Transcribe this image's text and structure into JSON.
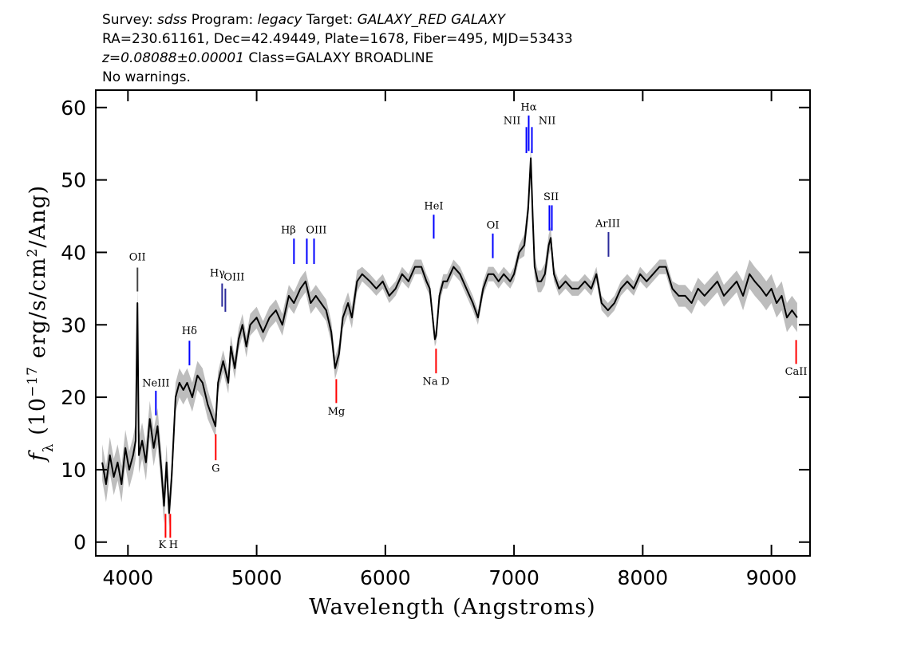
{
  "chart_data": {
    "type": "line",
    "title_lines": [
      [
        {
          "text": "Survey: ",
          "italic": false
        },
        {
          "text": "sdss",
          "italic": true
        },
        {
          "text": " Program: ",
          "italic": false
        },
        {
          "text": "legacy",
          "italic": true
        },
        {
          "text": " Target: ",
          "italic": false
        },
        {
          "text": "GALAXY_RED GALAXY",
          "italic": true
        }
      ],
      [
        {
          "text": "RA=230.61161, Dec=42.49449, Plate=1678, Fiber=495, MJD=53433",
          "italic": false
        }
      ],
      [
        {
          "text": "z=0.08088±0.00001",
          "italic": true
        },
        {
          "text": " Class=GALAXY BROADLINE",
          "italic": false
        }
      ],
      [
        {
          "text": "No warnings.",
          "italic": false
        }
      ]
    ],
    "xlabel": "Wavelength (Angstroms)",
    "ylabel": [
      {
        "text": "f",
        "shift": "italic"
      },
      {
        "text": "λ",
        "shift": "sub"
      },
      {
        "text": " (10",
        "shift": "none"
      },
      {
        "text": "−17",
        "shift": "sup"
      },
      {
        "text": " erg/s/cm",
        "shift": "none"
      },
      {
        "text": "2",
        "shift": "sup"
      },
      {
        "text": "/Ang)",
        "shift": "none"
      }
    ],
    "xlim": [
      3750,
      9300
    ],
    "ylim": [
      -1.9,
      62.4
    ],
    "xticks": [
      4000,
      5000,
      6000,
      7000,
      8000,
      9000
    ],
    "yticks": [
      0,
      10,
      20,
      30,
      40,
      50,
      60
    ],
    "x": [
      3800,
      3830,
      3860,
      3890,
      3920,
      3950,
      3980,
      4010,
      4040,
      4060,
      4074,
      4085,
      4110,
      4140,
      4170,
      4200,
      4230,
      4260,
      4280,
      4300,
      4320,
      4340,
      4370,
      4400,
      4430,
      4460,
      4500,
      4540,
      4580,
      4620,
      4680,
      4700,
      4740,
      4780,
      4800,
      4830,
      4860,
      4890,
      4920,
      4950,
      5000,
      5050,
      5100,
      5150,
      5200,
      5250,
      5290,
      5340,
      5380,
      5420,
      5460,
      5500,
      5540,
      5580,
      5610,
      5640,
      5670,
      5710,
      5740,
      5780,
      5820,
      5880,
      5930,
      5980,
      6030,
      6080,
      6130,
      6180,
      6230,
      6280,
      6320,
      6345,
      6385,
      6395,
      6420,
      6450,
      6480,
      6530,
      6580,
      6630,
      6680,
      6720,
      6760,
      6800,
      6840,
      6880,
      6920,
      6970,
      7000,
      7040,
      7080,
      7110,
      7130,
      7145,
      7160,
      7185,
      7210,
      7240,
      7270,
      7285,
      7310,
      7350,
      7400,
      7450,
      7500,
      7550,
      7600,
      7640,
      7680,
      7730,
      7780,
      7830,
      7880,
      7930,
      7980,
      8030,
      8080,
      8130,
      8180,
      8230,
      8280,
      8330,
      8380,
      8430,
      8480,
      8530,
      8580,
      8630,
      8680,
      8730,
      8780,
      8830,
      8870,
      8920,
      8960,
      9000,
      9040,
      9080,
      9120,
      9160,
      9200
    ],
    "series": [
      {
        "color": "#000000",
        "band_color": "#bdbdbd",
        "values": [
          11,
          8,
          12,
          9,
          11,
          8,
          13,
          10,
          12,
          14,
          33,
          12,
          14,
          11,
          17,
          13,
          16,
          10,
          5,
          11,
          4,
          9,
          20,
          22,
          21,
          22,
          20,
          23,
          22,
          19,
          16,
          22,
          25,
          22,
          27,
          24,
          28,
          30,
          27,
          30,
          31,
          29,
          31,
          32,
          30,
          34,
          33,
          35,
          36,
          33,
          34,
          33,
          32,
          29,
          24,
          26,
          31,
          33,
          31,
          36,
          37,
          36,
          35,
          36,
          34,
          35,
          37,
          36,
          38,
          38,
          36,
          35,
          28,
          28.5,
          34,
          36,
          36,
          38,
          37,
          35,
          33,
          31,
          35,
          37,
          37,
          36,
          37,
          36,
          37,
          40,
          41,
          46,
          53,
          45,
          38,
          36,
          36,
          37,
          41,
          42,
          37,
          35,
          36,
          35,
          35,
          36,
          35,
          37,
          33,
          32,
          33,
          35,
          36,
          35,
          37,
          36,
          37,
          38,
          38,
          35,
          34,
          34,
          33,
          35,
          34,
          35,
          36,
          34,
          35,
          36,
          34,
          37,
          36,
          35,
          34,
          35,
          33,
          34,
          31,
          32,
          31
        ],
        "error": [
          2.5,
          2.5,
          2.5,
          2.5,
          2.5,
          2.5,
          2.5,
          2.5,
          2.5,
          2.5,
          2.5,
          2.5,
          2.5,
          2.5,
          2.5,
          2.5,
          2.5,
          2.5,
          2.5,
          2.5,
          2,
          2,
          2,
          2,
          2,
          2,
          2,
          2,
          2,
          2,
          1.5,
          1.5,
          1.5,
          1.5,
          1.5,
          1.5,
          1.5,
          1.5,
          1.5,
          1.5,
          1.5,
          1.5,
          1.5,
          1.5,
          1.5,
          1.5,
          1.5,
          1.5,
          1.5,
          1.5,
          1.5,
          1.5,
          1.5,
          1.5,
          1.5,
          1.5,
          1.5,
          1.5,
          1.5,
          1.5,
          1,
          1,
          1,
          1,
          1,
          1,
          1,
          1,
          1,
          1,
          1,
          1,
          1,
          1,
          1,
          1,
          1,
          1,
          1,
          1,
          1,
          1,
          1,
          1,
          1,
          1,
          1,
          1,
          1,
          1,
          1.5,
          1.5,
          1.5,
          1.5,
          1.5,
          1.5,
          1.5,
          1.5,
          1.5,
          1.5,
          1,
          1,
          1,
          1,
          1,
          1,
          1,
          1,
          1,
          1,
          1,
          1,
          1,
          1,
          1,
          1,
          1,
          1,
          1,
          1,
          1.5,
          1.5,
          1.5,
          1.5,
          1.5,
          1.5,
          1.5,
          1.5,
          1.5,
          1.5,
          2,
          2,
          2,
          2,
          2,
          2,
          2,
          2,
          2,
          2,
          2
        ]
      }
    ],
    "annotations": [
      {
        "label": "OII",
        "label_x": 4074,
        "label_y": 39.3,
        "x": [
          4074
        ],
        "y": [
          34.6,
          37.9
        ],
        "color": "#444444"
      },
      {
        "label": "NeIII",
        "label_x": 4217,
        "label_y": 21.9,
        "x": [
          4217
        ],
        "y": [
          17.5,
          20.9
        ],
        "color": "#0000ff"
      },
      {
        "label": "Hδ",
        "label_x": 4478,
        "label_y": 29.1,
        "x": [
          4478
        ],
        "y": [
          24.4,
          27.8
        ],
        "color": "#0000ff"
      },
      {
        "label": "Hγ",
        "label_x": 4695,
        "label_y": 37.1,
        "x": [
          4732
        ],
        "y": [
          32.5,
          35.7
        ],
        "color": "#2a2a9a"
      },
      {
        "label": "OIII",
        "label_x": 4825,
        "label_y": 36.5,
        "x": [
          4757
        ],
        "y": [
          31.8,
          35.0
        ],
        "color": "#2a2a9a"
      },
      {
        "label": "Hβ",
        "label_x": 5247,
        "label_y": 43.0,
        "x": [
          5290
        ],
        "y": [
          38.4,
          41.9
        ],
        "color": "#0000ff"
      },
      {
        "label": "OIII",
        "label_x": 5464,
        "label_y": 43.0,
        "x": [
          5390,
          5446
        ],
        "y": [
          38.4,
          41.9
        ],
        "color": "#0000ff"
      },
      {
        "label": "HeI",
        "label_x": 6376,
        "label_y": 46.3,
        "x": [
          6376
        ],
        "y": [
          41.9,
          45.2
        ],
        "color": "#0000ff"
      },
      {
        "label": "OI",
        "label_x": 6835,
        "label_y": 43.7,
        "x": [
          6835
        ],
        "y": [
          39.2,
          42.6
        ],
        "color": "#0000ff"
      },
      {
        "label": "NII",
        "label_x": 6984,
        "label_y": 58.1,
        "x": [
          7096
        ],
        "y": [
          53.7,
          57.3
        ],
        "color": "#0000ff"
      },
      {
        "label": "Hα",
        "label_x": 7114,
        "label_y": 60.0,
        "x": [
          7114
        ],
        "y": [
          54.0,
          58.9
        ],
        "color": "#0000ff"
      },
      {
        "label": "NII",
        "label_x": 7257,
        "label_y": 58.1,
        "x": [
          7139
        ],
        "y": [
          53.7,
          57.3
        ],
        "color": "#0000ff"
      },
      {
        "label": "SII",
        "label_x": 7288,
        "label_y": 47.6,
        "x": [
          7275,
          7294
        ],
        "y": [
          43.0,
          46.5
        ],
        "color": "#0000ff"
      },
      {
        "label": "ArIII",
        "label_x": 7728,
        "label_y": 43.9,
        "x": [
          7734
        ],
        "y": [
          39.4,
          42.8
        ],
        "color": "#2a2a9a"
      },
      {
        "label": "K",
        "label_x": 4267,
        "label_y": -0.4,
        "x": [
          4292
        ],
        "y": [
          0.6,
          3.9
        ],
        "color": "#ff0000"
      },
      {
        "label": "H",
        "label_x": 4354,
        "label_y": -0.4,
        "x": [
          4329
        ],
        "y": [
          0.6,
          3.9
        ],
        "color": "#ff0000"
      },
      {
        "label": "G",
        "label_x": 4682,
        "label_y": 10.1,
        "x": [
          4682
        ],
        "y": [
          11.3,
          14.9
        ],
        "color": "#ff0000"
      },
      {
        "label": "Mg",
        "label_x": 5619,
        "label_y": 18.0,
        "x": [
          5619
        ],
        "y": [
          19.2,
          22.5
        ],
        "color": "#ff0000"
      },
      {
        "label": "Na D",
        "label_x": 6394,
        "label_y": 22.1,
        "x": [
          6394
        ],
        "y": [
          23.3,
          26.7
        ],
        "color": "#ff0000"
      },
      {
        "label": "CaII",
        "label_x": 9192,
        "label_y": 23.5,
        "x": [
          9192
        ],
        "y": [
          24.6,
          27.9
        ],
        "color": "#ff0000"
      }
    ]
  }
}
